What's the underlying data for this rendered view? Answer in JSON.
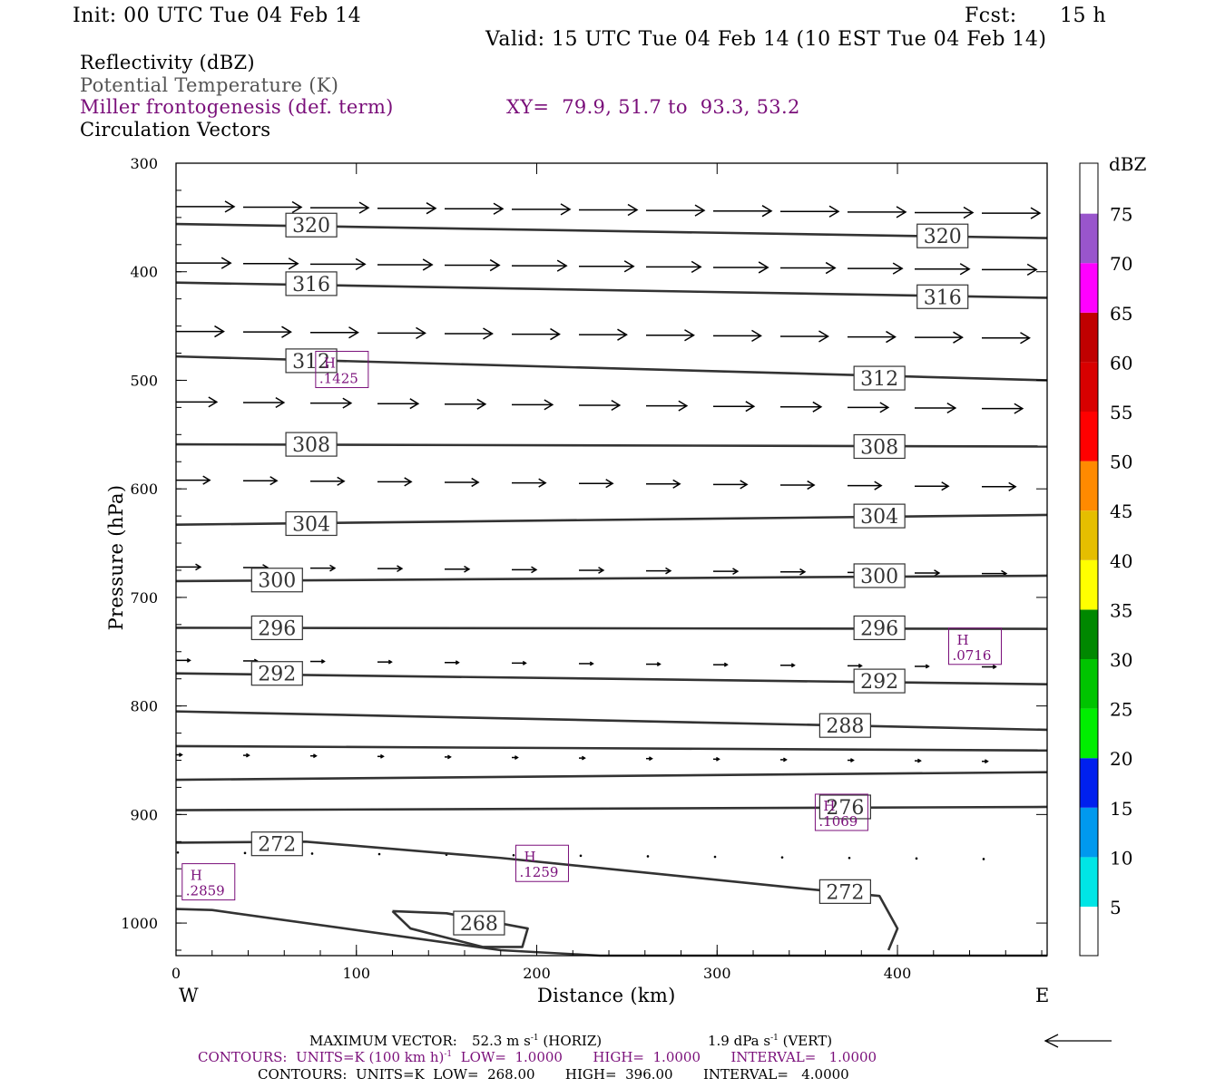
{
  "header": {
    "init": "Init: 00 UTC Tue 04 Feb 14",
    "fcst_label": "Fcst:",
    "fcst_value": "15 h",
    "valid": "Valid: 15 UTC Tue 04 Feb 14 (10 EST Tue 04 Feb 14)"
  },
  "fields": {
    "reflectivity": "Reflectivity (dBZ)",
    "theta": "Potential Temperature (K)",
    "miller": "Miller frontogenesis (def. term)",
    "xy": "XY=  79.9, 51.7 to  93.3, 53.2",
    "vectors": "Circulation Vectors"
  },
  "colors": {
    "black": "#000000",
    "gray": "#555555",
    "purple": "#7a0f7a"
  },
  "chart_data": {
    "type": "cross-section",
    "xlabel": "Distance (km)",
    "ylabel": "Pressure (hPa)",
    "xlim": [
      0,
      483
    ],
    "ylim": [
      300,
      1030
    ],
    "x_ticks": [
      0,
      100,
      200,
      300,
      400
    ],
    "x_tick_labels": [
      "0",
      "100",
      "200",
      "300",
      "400"
    ],
    "y_ticks": [
      300,
      400,
      500,
      600,
      700,
      800,
      900,
      1000
    ],
    "y_tick_labels": [
      "300",
      "400",
      "500",
      "600",
      "700",
      "800",
      "900",
      "1000"
    ],
    "west_label": "W",
    "east_label": "E",
    "theta_contours": [
      {
        "label": "320",
        "points": [
          [
            0,
            356
          ],
          [
            483,
            369
          ]
        ],
        "label_pos": [
          [
            75,
            357
          ],
          [
            425,
            367
          ]
        ]
      },
      {
        "label": "316",
        "points": [
          [
            0,
            410
          ],
          [
            483,
            424
          ]
        ],
        "label_pos": [
          [
            75,
            411
          ],
          [
            425,
            423
          ]
        ]
      },
      {
        "label": "312",
        "points": [
          [
            0,
            478
          ],
          [
            483,
            500
          ]
        ],
        "label_pos": [
          [
            75,
            482
          ],
          [
            390,
            498
          ]
        ]
      },
      {
        "label": "308",
        "points": [
          [
            0,
            559
          ],
          [
            483,
            561
          ]
        ],
        "label_pos": [
          [
            75,
            559
          ],
          [
            390,
            561
          ]
        ]
      },
      {
        "label": "304",
        "points": [
          [
            0,
            633
          ],
          [
            483,
            624
          ]
        ],
        "label_pos": [
          [
            75,
            632
          ],
          [
            390,
            625
          ]
        ]
      },
      {
        "label": "300",
        "points": [
          [
            0,
            685
          ],
          [
            483,
            680
          ]
        ],
        "label_pos": [
          [
            56,
            684
          ],
          [
            390,
            680
          ]
        ]
      },
      {
        "label": "296",
        "points": [
          [
            0,
            728
          ],
          [
            483,
            729
          ]
        ],
        "label_pos": [
          [
            56,
            728
          ],
          [
            390,
            728
          ]
        ]
      },
      {
        "label": "292",
        "points": [
          [
            0,
            770
          ],
          [
            483,
            780
          ]
        ],
        "label_pos": [
          [
            56,
            770
          ],
          [
            390,
            777
          ]
        ]
      },
      {
        "label": "288",
        "points": [
          [
            0,
            805
          ],
          [
            483,
            822
          ]
        ],
        "label_pos": [
          [
            371,
            818
          ]
        ]
      },
      {
        "label": "",
        "points": [
          [
            0,
            837
          ],
          [
            483,
            841
          ]
        ],
        "label_pos": []
      },
      {
        "label": "",
        "points": [
          [
            0,
            868
          ],
          [
            483,
            861
          ]
        ],
        "label_pos": []
      },
      {
        "label": "276",
        "points": [
          [
            0,
            896
          ],
          [
            483,
            893
          ]
        ],
        "label_pos": [
          [
            371,
            893
          ]
        ]
      },
      {
        "label": "272",
        "points": [
          [
            0,
            926
          ],
          [
            72,
            925
          ],
          [
            180,
            940
          ],
          [
            340,
            967
          ],
          [
            390,
            975
          ],
          [
            400,
            1005
          ],
          [
            395,
            1025
          ]
        ],
        "label_pos": [
          [
            56,
            927
          ],
          [
            371,
            971
          ]
        ]
      },
      {
        "label": "",
        "points": [
          [
            0,
            987
          ],
          [
            20,
            988
          ],
          [
            180,
            1025
          ],
          [
            235,
            1030
          ],
          [
            483,
            1030
          ]
        ],
        "label_pos": []
      },
      {
        "label": "268",
        "points": [
          [
            120,
            989
          ],
          [
            150,
            991
          ],
          [
            195,
            1005
          ],
          [
            192,
            1022
          ],
          [
            170,
            1022
          ],
          [
            130,
            1005
          ],
          [
            120,
            989
          ]
        ],
        "label_pos": [
          [
            168,
            1000
          ]
        ]
      }
    ],
    "frontogenesis_maxima": [
      {
        "label": "H",
        "value": ".1425",
        "x": 92,
        "p": 490
      },
      {
        "label": "H",
        "value": ".0716",
        "x": 443,
        "p": 745
      },
      {
        "label": "H",
        "value": ".1069",
        "x": 369,
        "p": 898
      },
      {
        "label": "H",
        "value": ".1259",
        "x": 203,
        "p": 945
      },
      {
        "label": "H",
        "value": ".2859",
        "x": 18,
        "p": 962
      }
    ],
    "vector_rows": [
      {
        "p": 340,
        "len": 1.0
      },
      {
        "p": 392,
        "len": 0.94
      },
      {
        "p": 455,
        "len": 0.82
      },
      {
        "p": 520,
        "len": 0.7
      },
      {
        "p": 592,
        "len": 0.58
      },
      {
        "p": 672,
        "len": 0.42
      },
      {
        "p": 758,
        "len": 0.24
      },
      {
        "p": 845,
        "len": 0.1
      },
      {
        "p": 935,
        "len": 0.04
      }
    ],
    "colorbar": {
      "unit": "dBZ",
      "levels": [
        "5",
        "10",
        "15",
        "20",
        "25",
        "30",
        "35",
        "40",
        "45",
        "50",
        "55",
        "60",
        "65",
        "70",
        "75"
      ],
      "colors": [
        "#00e5e5",
        "#0099ee",
        "#0020ee",
        "#00ee00",
        "#00c400",
        "#008800",
        "#ffff00",
        "#e5be00",
        "#ff8a00",
        "#ff0000",
        "#d80000",
        "#c00000",
        "#ff00ff",
        "#9955cc",
        "#ffffff"
      ]
    }
  },
  "footer": {
    "max_vector_label": "MAXIMUM VECTOR:",
    "max_vector_horiz": "52.3 m s",
    "max_vector_horiz_unit": " (HORIZ)",
    "max_vector_vert": "1.9 dPa s",
    "max_vector_vert_unit": " (VERT)",
    "contours_purple": "CONTOURS:  UNITS=K (100 km h)",
    "contours_purple_rest": "  LOW=  1.0000       HIGH=  1.0000       INTERVAL=   1.0000",
    "contours_black": "CONTOURS:  UNITS=K  LOW=  268.00       HIGH=  396.00       INTERVAL=   4.0000"
  }
}
